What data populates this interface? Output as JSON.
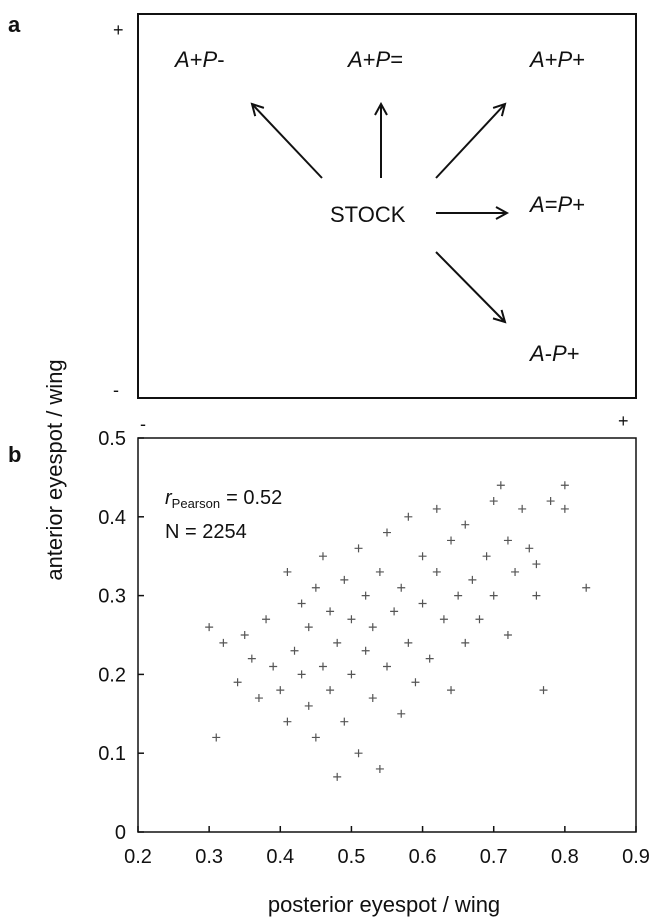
{
  "panel_a": {
    "label": "a",
    "plus_y": "+",
    "minus_y": "-",
    "minus_x": "-",
    "plus_x": "+",
    "center": "STOCK",
    "outcomes": [
      {
        "id": "ap-plus-minus",
        "a": "A",
        "a_sign": "+",
        "p": "P",
        "p_sign": "-"
      },
      {
        "id": "ap-plus-equal",
        "a": "A",
        "a_sign": "+",
        "p": "P",
        "p_sign": "="
      },
      {
        "id": "ap-plus-plus",
        "a": "A",
        "a_sign": "+",
        "p": "P",
        "p_sign": "+"
      },
      {
        "id": "ap-equal-plus",
        "a": "A",
        "a_sign": "=",
        "p": "P",
        "p_sign": "+"
      },
      {
        "id": "ap-minus-plus",
        "a": "A",
        "a_sign": "-",
        "p": "P",
        "p_sign": "+"
      }
    ]
  },
  "panel_b": {
    "label": "b",
    "stat_r_symbol": "r",
    "stat_r_subscript": "Pearson",
    "stat_r_value": "= 0.52",
    "stat_n": "N = 2254"
  },
  "shared_ylabel": "anterior eyespot / wing",
  "chart_data": {
    "type": "scatter",
    "title": "",
    "xlabel": "posterior eyespot / wing",
    "ylabel": "anterior eyespot / wing",
    "xlim": [
      0.2,
      0.9
    ],
    "ylim": [
      0,
      0.5
    ],
    "xticks": [
      "0.2",
      "0.3",
      "0.4",
      "0.5",
      "0.6",
      "0.7",
      "0.8",
      "0.9"
    ],
    "yticks": [
      "0",
      "0.1",
      "0.2",
      "0.3",
      "0.4",
      "0.5"
    ],
    "marker": "+",
    "marker_color": "#555555",
    "pearson_r": 0.52,
    "n": 2254,
    "series": [
      {
        "points": [
          [
            0.31,
            0.12
          ],
          [
            0.3,
            0.26
          ],
          [
            0.32,
            0.24
          ],
          [
            0.34,
            0.19
          ],
          [
            0.35,
            0.25
          ],
          [
            0.36,
            0.22
          ],
          [
            0.37,
            0.17
          ],
          [
            0.38,
            0.27
          ],
          [
            0.39,
            0.21
          ],
          [
            0.4,
            0.18
          ],
          [
            0.41,
            0.14
          ],
          [
            0.41,
            0.33
          ],
          [
            0.42,
            0.23
          ],
          [
            0.43,
            0.2
          ],
          [
            0.43,
            0.29
          ],
          [
            0.44,
            0.16
          ],
          [
            0.44,
            0.26
          ],
          [
            0.45,
            0.12
          ],
          [
            0.45,
            0.31
          ],
          [
            0.46,
            0.21
          ],
          [
            0.46,
            0.35
          ],
          [
            0.47,
            0.18
          ],
          [
            0.47,
            0.28
          ],
          [
            0.48,
            0.07
          ],
          [
            0.48,
            0.24
          ],
          [
            0.49,
            0.14
          ],
          [
            0.49,
            0.32
          ],
          [
            0.5,
            0.2
          ],
          [
            0.5,
            0.27
          ],
          [
            0.51,
            0.1
          ],
          [
            0.51,
            0.36
          ],
          [
            0.52,
            0.23
          ],
          [
            0.52,
            0.3
          ],
          [
            0.53,
            0.17
          ],
          [
            0.53,
            0.26
          ],
          [
            0.54,
            0.08
          ],
          [
            0.54,
            0.33
          ],
          [
            0.55,
            0.21
          ],
          [
            0.55,
            0.38
          ],
          [
            0.56,
            0.28
          ],
          [
            0.57,
            0.15
          ],
          [
            0.57,
            0.31
          ],
          [
            0.58,
            0.24
          ],
          [
            0.58,
            0.4
          ],
          [
            0.59,
            0.19
          ],
          [
            0.6,
            0.29
          ],
          [
            0.6,
            0.35
          ],
          [
            0.61,
            0.22
          ],
          [
            0.62,
            0.33
          ],
          [
            0.62,
            0.41
          ],
          [
            0.63,
            0.27
          ],
          [
            0.64,
            0.18
          ],
          [
            0.64,
            0.37
          ],
          [
            0.65,
            0.3
          ],
          [
            0.66,
            0.24
          ],
          [
            0.66,
            0.39
          ],
          [
            0.67,
            0.32
          ],
          [
            0.68,
            0.27
          ],
          [
            0.69,
            0.35
          ],
          [
            0.7,
            0.3
          ],
          [
            0.7,
            0.42
          ],
          [
            0.71,
            0.44
          ],
          [
            0.72,
            0.25
          ],
          [
            0.72,
            0.37
          ],
          [
            0.73,
            0.33
          ],
          [
            0.74,
            0.41
          ],
          [
            0.75,
            0.36
          ],
          [
            0.76,
            0.3
          ],
          [
            0.76,
            0.34
          ],
          [
            0.78,
            0.42
          ],
          [
            0.8,
            0.41
          ],
          [
            0.8,
            0.44
          ],
          [
            0.83,
            0.31
          ],
          [
            0.77,
            0.18
          ]
        ]
      }
    ]
  }
}
